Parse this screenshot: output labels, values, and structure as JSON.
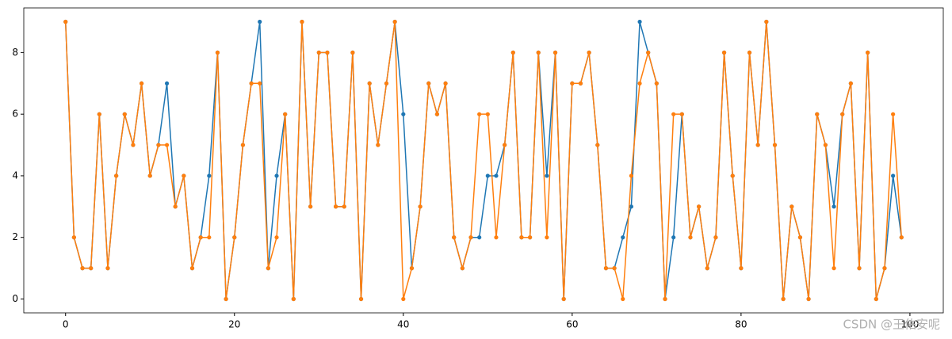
{
  "chart_data": {
    "type": "line",
    "x": [
      0,
      1,
      2,
      3,
      4,
      5,
      6,
      7,
      8,
      9,
      10,
      11,
      12,
      13,
      14,
      15,
      16,
      17,
      18,
      19,
      20,
      21,
      22,
      23,
      24,
      25,
      26,
      27,
      28,
      29,
      30,
      31,
      32,
      33,
      34,
      35,
      36,
      37,
      38,
      39,
      40,
      41,
      42,
      43,
      44,
      45,
      46,
      47,
      48,
      49,
      50,
      51,
      52,
      53,
      54,
      55,
      56,
      57,
      58,
      59,
      60,
      61,
      62,
      63,
      64,
      65,
      66,
      67,
      68,
      69,
      70,
      71,
      72,
      73,
      74,
      75,
      76,
      77,
      78,
      79,
      80,
      81,
      82,
      83,
      84,
      85,
      86,
      87,
      88,
      89,
      90,
      91,
      92,
      93,
      94,
      95,
      96,
      97,
      98,
      99
    ],
    "series": [
      {
        "color": "#1f77b4",
        "values": [
          9,
          2,
          1,
          1,
          6,
          1,
          4,
          6,
          5,
          7,
          4,
          5,
          7,
          3,
          4,
          1,
          2,
          4,
          8,
          0,
          2,
          5,
          7,
          9,
          1,
          4,
          6,
          0,
          9,
          3,
          8,
          8,
          3,
          3,
          8,
          0,
          7,
          5,
          7,
          9,
          6,
          1,
          3,
          7,
          6,
          7,
          2,
          1,
          2,
          2,
          4,
          4,
          5,
          8,
          2,
          2,
          8,
          4,
          8,
          0,
          7,
          7,
          8,
          5,
          1,
          1,
          2,
          3,
          9,
          8,
          7,
          0,
          2,
          6,
          2,
          3,
          1,
          2,
          8,
          4,
          1,
          8,
          5,
          9,
          5,
          0,
          3,
          2,
          0,
          6,
          5,
          3,
          6,
          7,
          1,
          8,
          0,
          1,
          4,
          2
        ]
      },
      {
        "color": "#ff7f0e",
        "values": [
          9,
          2,
          1,
          1,
          6,
          1,
          4,
          6,
          5,
          7,
          4,
          5,
          5,
          3,
          4,
          1,
          2,
          2,
          8,
          0,
          2,
          5,
          7,
          7,
          1,
          2,
          6,
          0,
          9,
          3,
          8,
          8,
          3,
          3,
          8,
          0,
          7,
          5,
          7,
          9,
          0,
          1,
          3,
          7,
          6,
          7,
          2,
          1,
          2,
          6,
          6,
          2,
          5,
          8,
          2,
          2,
          8,
          2,
          8,
          0,
          7,
          7,
          8,
          5,
          1,
          1,
          0,
          4,
          7,
          8,
          7,
          0,
          6,
          6,
          2,
          3,
          1,
          2,
          8,
          4,
          1,
          8,
          5,
          9,
          5,
          0,
          3,
          2,
          0,
          6,
          5,
          1,
          6,
          7,
          1,
          8,
          0,
          1,
          6,
          2
        ]
      }
    ],
    "xlim": [
      -4.95,
      103.95
    ],
    "ylim": [
      -0.45,
      9.45
    ],
    "xticks": [
      0,
      20,
      40,
      60,
      80,
      100
    ],
    "yticks": [
      0,
      2,
      4,
      6,
      8
    ],
    "watermark": "CSDN @王佑安呢"
  }
}
